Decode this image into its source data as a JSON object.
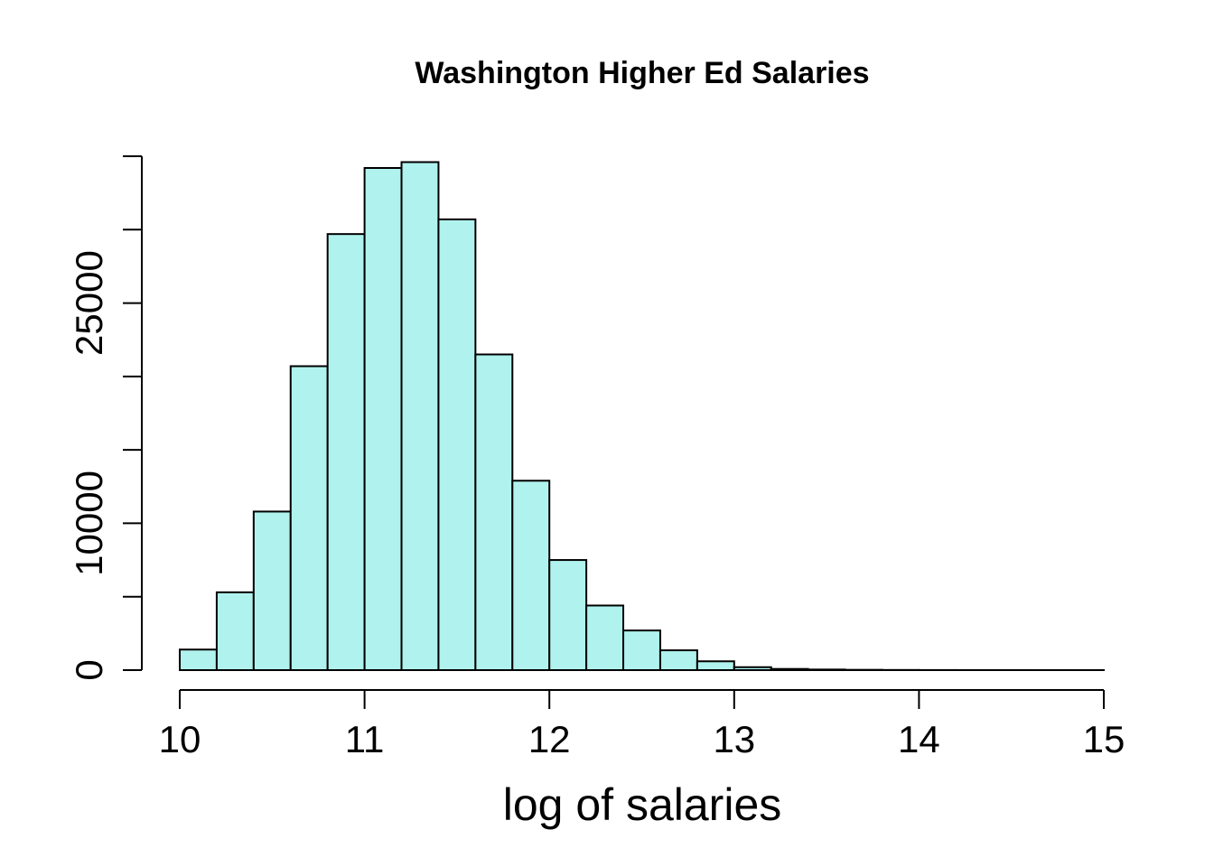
{
  "chart_data": {
    "type": "bar",
    "title": "Washington Higher Ed Salaries",
    "xlabel": "log of salaries",
    "ylabel": "",
    "xlim": [
      10,
      15
    ],
    "ylim": [
      0,
      35000
    ],
    "x_ticks": [
      "10",
      "11",
      "12",
      "13",
      "14",
      "15"
    ],
    "x_tick_values": [
      10,
      11,
      12,
      13,
      14,
      15
    ],
    "y_ticks": [
      "0",
      "10000",
      "25000"
    ],
    "y_tick_values": [
      0,
      10000,
      25000
    ],
    "y_minor_tick_values": [
      0,
      5000,
      10000,
      15000,
      20000,
      25000,
      30000,
      35000
    ],
    "grid": false,
    "bar_color": "#b0f3ee",
    "bins": [
      {
        "x0": 10.0,
        "x1": 10.2,
        "count": 1400
      },
      {
        "x0": 10.2,
        "x1": 10.4,
        "count": 5300
      },
      {
        "x0": 10.4,
        "x1": 10.6,
        "count": 10800
      },
      {
        "x0": 10.6,
        "x1": 10.8,
        "count": 20700
      },
      {
        "x0": 10.8,
        "x1": 11.0,
        "count": 29700
      },
      {
        "x0": 11.0,
        "x1": 11.2,
        "count": 34200
      },
      {
        "x0": 11.2,
        "x1": 11.4,
        "count": 34600
      },
      {
        "x0": 11.4,
        "x1": 11.6,
        "count": 30700
      },
      {
        "x0": 11.6,
        "x1": 11.8,
        "count": 21500
      },
      {
        "x0": 11.8,
        "x1": 12.0,
        "count": 12900
      },
      {
        "x0": 12.0,
        "x1": 12.2,
        "count": 7500
      },
      {
        "x0": 12.2,
        "x1": 12.4,
        "count": 4400
      },
      {
        "x0": 12.4,
        "x1": 12.6,
        "count": 2700
      },
      {
        "x0": 12.6,
        "x1": 12.8,
        "count": 1350
      },
      {
        "x0": 12.8,
        "x1": 13.0,
        "count": 600
      },
      {
        "x0": 13.0,
        "x1": 13.2,
        "count": 200
      },
      {
        "x0": 13.2,
        "x1": 13.4,
        "count": 80
      },
      {
        "x0": 13.4,
        "x1": 13.6,
        "count": 40
      },
      {
        "x0": 13.6,
        "x1": 13.8,
        "count": 20
      },
      {
        "x0": 13.8,
        "x1": 14.0,
        "count": 10
      },
      {
        "x0": 14.0,
        "x1": 14.2,
        "count": 5
      },
      {
        "x0": 14.2,
        "x1": 14.4,
        "count": 3
      },
      {
        "x0": 14.4,
        "x1": 14.6,
        "count": 2
      },
      {
        "x0": 14.6,
        "x1": 14.8,
        "count": 1
      },
      {
        "x0": 14.8,
        "x1": 15.0,
        "count": 1
      }
    ]
  }
}
